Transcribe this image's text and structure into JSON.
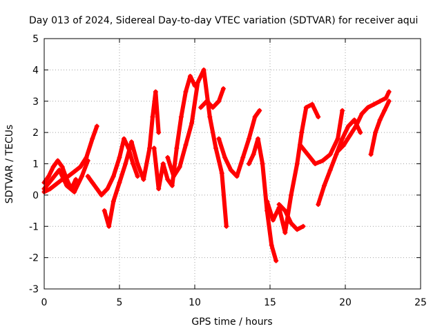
{
  "chart_data": {
    "type": "scatter",
    "title": "Day 013 of 2024, Sidereal Day-to-day VTEC variation (SDTVAR) for receiver aqui",
    "xlabel": "GPS time / hours",
    "ylabel": "SDTVAR / TECUs",
    "xlim": [
      0,
      25
    ],
    "ylim": [
      -3,
      5
    ],
    "xticks": [
      "0",
      "5",
      "10",
      "15",
      "20",
      "25"
    ],
    "yticks": [
      "-3",
      "-2",
      "-1",
      "0",
      "1",
      "2",
      "3",
      "4",
      "5"
    ],
    "grid": true,
    "marker": "+",
    "color": "#ff0000",
    "series": [
      {
        "name": "s1",
        "x": [
          0.0,
          0.3,
          0.6,
          0.9,
          1.2,
          1.5,
          1.8,
          2.1
        ],
        "y": [
          0.4,
          0.6,
          0.9,
          1.1,
          0.9,
          0.5,
          0.2,
          0.5
        ]
      },
      {
        "name": "s2",
        "x": [
          0.0,
          0.4,
          0.8,
          1.2,
          1.6,
          2.0,
          2.4,
          2.8,
          3.2,
          3.5
        ],
        "y": [
          0.1,
          0.2,
          0.35,
          0.5,
          0.6,
          0.75,
          0.9,
          1.2,
          1.8,
          2.2
        ]
      },
      {
        "name": "s3",
        "x": [
          0.0,
          0.5,
          1.0,
          1.5,
          2.0,
          2.5,
          2.9
        ],
        "y": [
          0.2,
          0.5,
          0.8,
          0.3,
          0.1,
          0.6,
          1.1
        ]
      },
      {
        "name": "s4",
        "x": [
          2.9,
          3.2,
          3.5,
          3.8,
          4.2,
          4.6,
          5.0,
          5.3,
          5.6,
          5.9,
          6.2
        ],
        "y": [
          0.6,
          0.4,
          0.2,
          0.0,
          0.2,
          0.6,
          1.2,
          1.8,
          1.5,
          1.0,
          0.6
        ]
      },
      {
        "name": "s5",
        "x": [
          4.0,
          4.3,
          4.6,
          5.0,
          5.4,
          5.8,
          6.2,
          6.6,
          7.0,
          7.2,
          7.4,
          7.6
        ],
        "y": [
          -0.5,
          -1.0,
          -0.2,
          0.4,
          1.0,
          1.7,
          1.0,
          0.5,
          1.5,
          2.5,
          3.3,
          2.0
        ]
      },
      {
        "name": "s6",
        "x": [
          7.3,
          7.6,
          7.9,
          8.2,
          8.5,
          8.8,
          9.1,
          9.4,
          9.7,
          10.0
        ],
        "y": [
          1.5,
          0.2,
          1.0,
          0.5,
          0.3,
          1.5,
          2.5,
          3.3,
          3.8,
          3.5
        ]
      },
      {
        "name": "s7",
        "x": [
          8.2,
          8.6,
          9.0,
          9.4,
          9.8,
          10.2,
          10.6,
          11.0,
          11.4,
          11.8,
          12.1
        ],
        "y": [
          1.2,
          0.6,
          0.9,
          1.6,
          2.3,
          3.6,
          4.0,
          2.5,
          1.5,
          0.7,
          -1.0
        ]
      },
      {
        "name": "s8",
        "x": [
          10.4,
          10.8,
          11.2,
          11.6,
          11.9
        ],
        "y": [
          2.8,
          3.0,
          2.8,
          3.0,
          3.4
        ]
      },
      {
        "name": "s9",
        "x": [
          11.6,
          12.0,
          12.4,
          12.8,
          13.2,
          13.6,
          14.0,
          14.3
        ],
        "y": [
          1.8,
          1.2,
          0.8,
          0.6,
          1.2,
          1.8,
          2.5,
          2.7
        ]
      },
      {
        "name": "s10",
        "x": [
          13.6,
          13.9,
          14.2,
          14.5,
          14.8,
          15.1,
          15.4
        ],
        "y": [
          1.0,
          1.3,
          1.8,
          1.0,
          -0.5,
          -1.6,
          -2.1
        ]
      },
      {
        "name": "s11",
        "x": [
          14.8,
          15.2,
          15.6,
          16.0,
          16.4,
          16.8,
          17.1,
          17.4,
          17.8,
          18.2
        ],
        "y": [
          -0.2,
          -0.8,
          -0.4,
          -1.2,
          0.0,
          1.0,
          2.0,
          2.8,
          2.9,
          2.5
        ]
      },
      {
        "name": "s12",
        "x": [
          15.6,
          16.0,
          16.4,
          16.8,
          17.2
        ],
        "y": [
          -0.3,
          -0.5,
          -0.9,
          -1.1,
          -1.0
        ]
      },
      {
        "name": "s13",
        "x": [
          17.0,
          17.5,
          18.0,
          18.5,
          19.0,
          19.5,
          19.8
        ],
        "y": [
          1.6,
          1.3,
          1.0,
          1.1,
          1.3,
          1.8,
          2.7
        ]
      },
      {
        "name": "s14",
        "x": [
          18.2,
          18.6,
          19.0,
          19.4,
          19.8,
          20.2,
          20.6,
          21.0
        ],
        "y": [
          -0.3,
          0.3,
          0.8,
          1.3,
          1.8,
          2.2,
          2.4,
          2.0
        ]
      },
      {
        "name": "s15",
        "x": [
          19.5,
          19.9,
          20.3,
          20.7,
          21.1,
          21.5,
          21.9,
          22.3,
          22.7,
          22.9
        ],
        "y": [
          1.4,
          1.6,
          1.9,
          2.2,
          2.6,
          2.8,
          2.9,
          3.0,
          3.1,
          3.3
        ]
      },
      {
        "name": "s16",
        "x": [
          21.7,
          22.0,
          22.3,
          22.6,
          22.9
        ],
        "y": [
          1.3,
          2.0,
          2.4,
          2.7,
          3.0
        ]
      }
    ]
  }
}
